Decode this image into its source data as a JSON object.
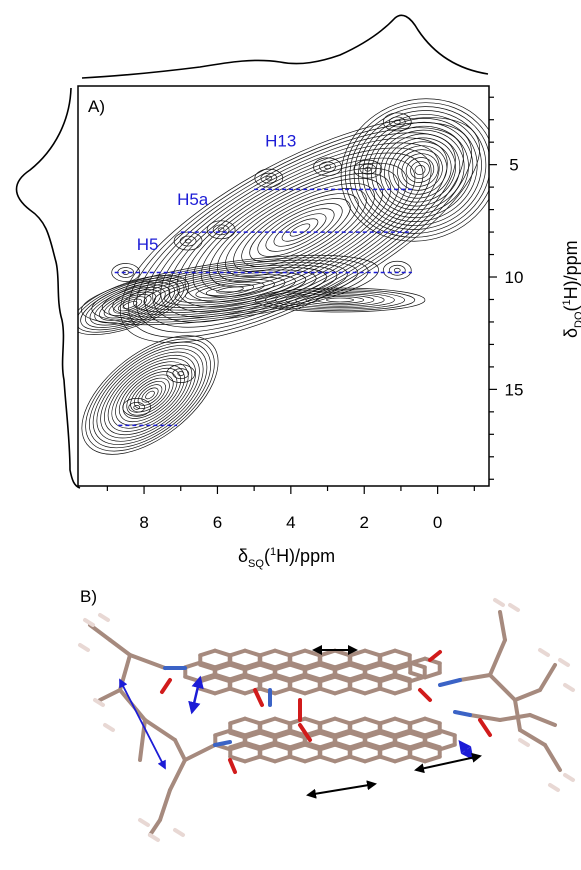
{
  "panel_a_label": "A)",
  "panel_b_label": "B)",
  "chart_data": {
    "type": "contour",
    "title": "",
    "xlabel": "δSQ(1H)/ppm",
    "xlabel_main": "δ",
    "xlabel_sub": "SQ",
    "xlabel_sup": "1",
    "xlabel_rest": "H)/ppm",
    "xlabel_open": "(",
    "ylabel": "δDQ(1H)/ppm",
    "ylabel_visible": "δ",
    "ylabel_sub": "DQ",
    "ylabel_sup": "1",
    "ylabel_rest": "H)/ppm",
    "x_reversed": true,
    "xlim": [
      9.8,
      -1.4
    ],
    "ylim": [
      1.5,
      19.3
    ],
    "x_ticks": [
      "8",
      "6",
      "4",
      "2",
      "0"
    ],
    "y_ticks": [
      "5",
      "10",
      "15"
    ],
    "annotations": [
      {
        "label": "H13",
        "x": 4.7,
        "y": 4.2
      },
      {
        "label": "H5a",
        "x": 7.1,
        "y": 6.8
      },
      {
        "label": "H5",
        "x": 8.2,
        "y": 8.8
      }
    ],
    "assignment_lines": [
      {
        "y": 6.1,
        "x_from": 5.0,
        "x_to": 0.7
      },
      {
        "y": 8.0,
        "x_from": 7.0,
        "x_to": 0.7
      },
      {
        "y": 9.8,
        "x_from": 8.8,
        "x_to": 0.7
      },
      {
        "y": 16.6,
        "x_from": 8.7,
        "x_to": 7.1
      }
    ],
    "peaks": [
      {
        "x": 1.1,
        "y": 3.1
      },
      {
        "x": 1.9,
        "y": 5.2
      },
      {
        "x": 3.0,
        "y": 5.1
      },
      {
        "x": 4.6,
        "y": 5.6
      },
      {
        "x": 5.9,
        "y": 7.9
      },
      {
        "x": 6.8,
        "y": 8.4
      },
      {
        "x": 8.5,
        "y": 9.8
      },
      {
        "x": 1.1,
        "y": 9.7
      },
      {
        "x": 7.0,
        "y": 14.3
      },
      {
        "x": 8.2,
        "y": 15.8
      }
    ],
    "projection_top": "1H single-quantum skyline projection",
    "projection_left": "1H double-quantum skyline projection"
  },
  "structure_image": {
    "description_hidden": true,
    "arrow_colors": {
      "blue": "#1c1cd6",
      "black": "#000000"
    },
    "atom_colors": {
      "carbon": "#a68a7e",
      "hydrogen": "#e8d8d4",
      "nitrogen": "#3b63c6",
      "oxygen": "#d11b1b"
    }
  }
}
